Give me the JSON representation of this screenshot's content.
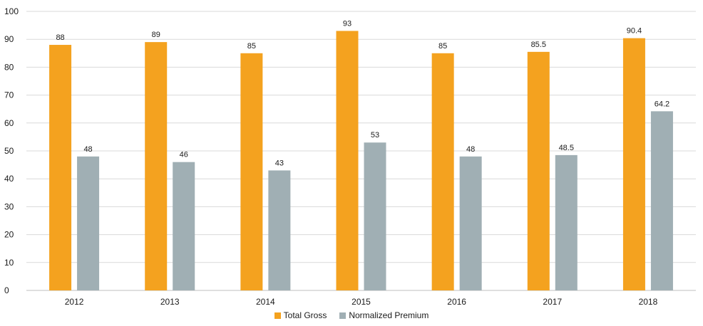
{
  "colors": {
    "total_gross": "#F4A21F",
    "normalized_premium": "#A0AFB4",
    "grid": "#D9D9D9",
    "axis": "#BFBFBF"
  },
  "chart_data": {
    "type": "bar",
    "title": "",
    "xlabel": "",
    "ylabel": "",
    "ylim": [
      0,
      100
    ],
    "yticks": [
      0,
      10,
      20,
      30,
      40,
      50,
      60,
      70,
      80,
      90,
      100
    ],
    "grid": true,
    "legend_position": "bottom",
    "categories": [
      "2012",
      "2013",
      "2014",
      "2015",
      "2016",
      "2017",
      "2018"
    ],
    "series": [
      {
        "name": "Total Gross",
        "values": [
          88,
          89,
          85,
          93,
          85,
          85.5,
          90.4
        ],
        "labels": [
          "88",
          "89",
          "85",
          "93",
          "85",
          "85.5",
          "90.4"
        ]
      },
      {
        "name": "Normalized Premium",
        "values": [
          48,
          46,
          43,
          53,
          48,
          48.5,
          64.2
        ],
        "labels": [
          "48",
          "46",
          "43",
          "53",
          "48",
          "48.5",
          "64.2"
        ]
      }
    ]
  }
}
